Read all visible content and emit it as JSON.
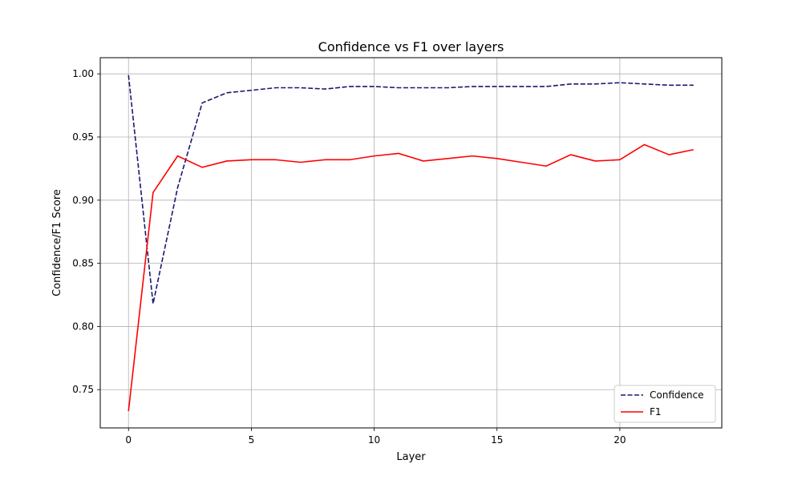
{
  "chart_data": {
    "type": "line",
    "title": "Confidence vs F1 over layers",
    "xlabel": "Layer",
    "ylabel": "Confidence/F1 Score",
    "xlim": [
      -1.15,
      24.15
    ],
    "ylim": [
      0.7197,
      1.0128
    ],
    "xticks": [
      0,
      5,
      10,
      15,
      20
    ],
    "xtick_labels": [
      "0",
      "5",
      "10",
      "15",
      "20"
    ],
    "yticks": [
      0.75,
      0.8,
      0.85,
      0.9,
      0.95,
      1.0
    ],
    "ytick_labels": [
      "0.75",
      "0.80",
      "0.85",
      "0.90",
      "0.95",
      "1.00"
    ],
    "grid": true,
    "legend_position": "lower right",
    "x": [
      0,
      1,
      2,
      3,
      4,
      5,
      6,
      7,
      8,
      9,
      10,
      11,
      12,
      13,
      14,
      15,
      16,
      17,
      18,
      19,
      20,
      21,
      22,
      23
    ],
    "series": [
      {
        "name": "Confidence",
        "color": "#191970",
        "dash": "dashed",
        "values": [
          0.999,
          0.818,
          0.91,
          0.977,
          0.985,
          0.987,
          0.989,
          0.989,
          0.988,
          0.99,
          0.99,
          0.989,
          0.989,
          0.989,
          0.99,
          0.99,
          0.99,
          0.99,
          0.992,
          0.992,
          0.993,
          0.992,
          0.991,
          0.991
        ]
      },
      {
        "name": "F1",
        "color": "#ff0000",
        "dash": "solid",
        "values": [
          0.733,
          0.906,
          0.935,
          0.926,
          0.931,
          0.932,
          0.932,
          0.93,
          0.932,
          0.932,
          0.935,
          0.937,
          0.931,
          0.933,
          0.935,
          0.933,
          0.93,
          0.927,
          0.936,
          0.931,
          0.932,
          0.944,
          0.936,
          0.94
        ]
      }
    ]
  }
}
